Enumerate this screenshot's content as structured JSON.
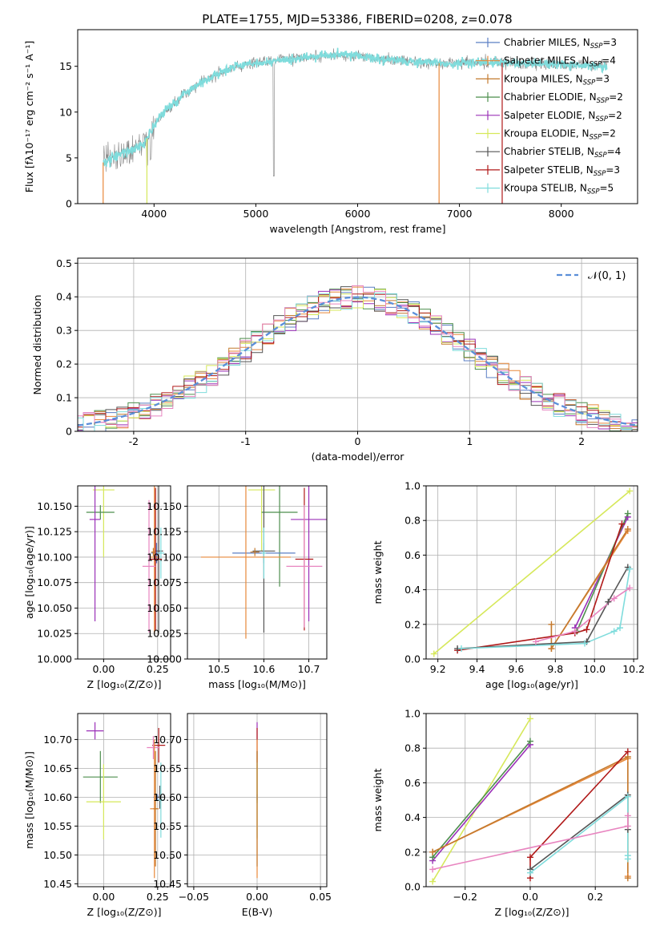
{
  "figure": {
    "title": "PLATE=1755, MJD=53386, FIBERID=0208, z=0.078"
  },
  "colors": {
    "Chabrier MILES": "#5b7fc4",
    "Salpeter MILES": "#e8883a",
    "Kroupa MILES": "#c47a2e",
    "Chabrier ELODIE": "#4e8f4e",
    "Salpeter ELODIE": "#9b30b8",
    "Kroupa ELODIE": "#d6e85a",
    "Chabrier STELIB": "#555555",
    "Salpeter STELIB": "#b01818",
    "Kroupa STELIB": "#7fdcdc",
    "pink": "#e885c0",
    "normal": "#5b8fd9",
    "spectrum": "#808080"
  },
  "legend_spectrum": [
    {
      "name": "Chabrier MILES",
      "label": "Chabrier MILES, N",
      "sub": "SSP",
      "tail": "=3"
    },
    {
      "name": "Salpeter MILES",
      "label": "Salpeter MILES, N",
      "sub": "SSP",
      "tail": "=4"
    },
    {
      "name": "Kroupa MILES",
      "label": "Kroupa MILES, N",
      "sub": "SSP",
      "tail": "=3"
    },
    {
      "name": "Chabrier ELODIE",
      "label": "Chabrier ELODIE, N",
      "sub": "SSP",
      "tail": "=2"
    },
    {
      "name": "Salpeter ELODIE",
      "label": "Salpeter ELODIE, N",
      "sub": "SSP",
      "tail": "=2"
    },
    {
      "name": "Kroupa ELODIE",
      "label": "Kroupa ELODIE, N",
      "sub": "SSP",
      "tail": "=2"
    },
    {
      "name": "Chabrier STELIB",
      "label": "Chabrier STELIB, N",
      "sub": "SSP",
      "tail": "=4"
    },
    {
      "name": "Salpeter STELIB",
      "label": "Salpeter STELIB, N",
      "sub": "SSP",
      "tail": "=3"
    },
    {
      "name": "Kroupa STELIB",
      "label": "Kroupa STELIB, N",
      "sub": "SSP",
      "tail": "=5"
    }
  ],
  "chart_data": [
    {
      "type": "line",
      "id": "spectrum",
      "xlabel": "wavelength [Angstrom, rest frame]",
      "ylabel": "Flux [fλ10⁻¹⁷ erg cm⁻² s⁻¹ A⁻¹]",
      "xlim": [
        3250,
        8750
      ],
      "ylim": [
        0,
        19
      ],
      "xticks": [
        4000,
        5000,
        6000,
        7000,
        8000
      ],
      "yticks": [
        0,
        5,
        10,
        15
      ],
      "grid": false,
      "legend": "right",
      "continuum": [
        [
          3500,
          4.5
        ],
        [
          3700,
          5.5
        ],
        [
          3900,
          6.5
        ],
        [
          4000,
          8.5
        ],
        [
          4100,
          10
        ],
        [
          4300,
          12
        ],
        [
          4500,
          13.5
        ],
        [
          4800,
          15
        ],
        [
          5100,
          15.5
        ],
        [
          5500,
          16
        ],
        [
          5800,
          16.3
        ],
        [
          6100,
          16
        ],
        [
          6500,
          15.5
        ],
        [
          6900,
          15.3
        ],
        [
          7200,
          15.5
        ],
        [
          7600,
          15.3
        ],
        [
          8000,
          15.2
        ],
        [
          8400,
          15
        ]
      ]
    },
    {
      "type": "line",
      "id": "residuals",
      "xlabel": "(data-model)/error",
      "ylabel": "Normed distribution",
      "xlim": [
        -2.5,
        2.5
      ],
      "ylim": [
        0,
        0.515
      ],
      "xticks": [
        -2,
        -1,
        0,
        1,
        2
      ],
      "yticks": [
        0.0,
        0.1,
        0.2,
        0.3,
        0.4,
        0.5
      ],
      "grid": true,
      "legend": "top-right",
      "legend_label": "𝒩(0, 1)"
    },
    {
      "type": "scatter",
      "id": "age_vs_Z",
      "xlabel": "Z [log₁₀(Z/Z⊙)]",
      "ylabel": "age  [log₁₀(age/yr)]",
      "xlim": [
        -0.12,
        0.31
      ],
      "ylim": [
        10.0,
        10.17
      ],
      "xticks": [
        0.0,
        0.25
      ],
      "xticklabels": [
        "0.00",
        "0.25"
      ],
      "yticks": [
        10.0,
        10.025,
        10.05,
        10.075,
        10.1,
        10.125,
        10.15
      ],
      "yticklabels": [
        "10.000",
        "10.025",
        "10.050",
        "10.075",
        "10.100",
        "10.125",
        "10.150"
      ],
      "grid": true,
      "points": [
        {
          "name": "Kroupa ELODIE",
          "x": 0.0,
          "y": 10.166,
          "xerr": 0.05,
          "yerr": 0.066
        },
        {
          "name": "Chabrier ELODIE",
          "x": -0.015,
          "y": 10.144,
          "xerr": 0.065,
          "yerr": 0.007
        },
        {
          "name": "Salpeter ELODIE",
          "x": -0.04,
          "y": 10.137,
          "xerr": 0.025,
          "yerr": 0.1
        },
        {
          "name": "Chabrier MILES",
          "x": 0.245,
          "y": 10.104,
          "xerr": 0.025,
          "yerr": 0.01
        },
        {
          "name": "Chabrier STELIB",
          "x": 0.255,
          "y": 10.106,
          "xerr": 0.02,
          "yerr": 0.08
        },
        {
          "name": "Kroupa STELIB",
          "x": 0.265,
          "y": 10.104,
          "xerr": 0.015,
          "yerr": 0.025
        },
        {
          "name": "Salpeter MILES",
          "x": 0.235,
          "y": 10.1,
          "xerr": 0.02,
          "yerr": 0.075
        },
        {
          "name": "Salpeter STELIB",
          "x": 0.24,
          "y": 10.098,
          "xerr": 0.03,
          "yerr": 0.07
        },
        {
          "name": "pink",
          "x": 0.21,
          "y": 10.091,
          "xerr": 0.03,
          "yerr": 0.065
        },
        {
          "name": "Kroupa MILES",
          "x": 0.23,
          "y": 10.105,
          "xerr": 0.01,
          "yerr": 0.004
        }
      ]
    },
    {
      "type": "scatter",
      "id": "age_vs_mass",
      "xlabel": "mass [log₁₀(M/M⊙)]",
      "xlim": [
        10.43,
        10.74
      ],
      "ylim": [
        10.0,
        10.17
      ],
      "xticks": [
        10.5,
        10.6,
        10.7
      ],
      "xticklabels": [
        "10.5",
        "10.6",
        "10.7"
      ],
      "yticks": [
        10.0,
        10.025,
        10.05,
        10.075,
        10.1,
        10.125,
        10.15
      ],
      "yticklabels": [
        "10.000",
        "10.025",
        "10.050",
        "10.075",
        "10.100",
        "10.125",
        "10.150"
      ],
      "grid": true,
      "points": [
        {
          "name": "Kroupa ELODIE",
          "x": 10.595,
          "y": 10.166,
          "xerr": 0.03,
          "yerr": 0.06
        },
        {
          "name": "Chabrier ELODIE",
          "x": 10.635,
          "y": 10.144,
          "xerr": 0.04,
          "yerr": 0.073
        },
        {
          "name": "Salpeter ELODIE",
          "x": 10.7,
          "y": 10.137,
          "xerr": 0.04,
          "yerr": 0.1
        },
        {
          "name": "Chabrier MILES",
          "x": 10.6,
          "y": 10.104,
          "xerr": 0.07,
          "yerr": 0.01
        },
        {
          "name": "Chabrier STELIB",
          "x": 10.6,
          "y": 10.106,
          "xerr": 0.025,
          "yerr": 0.08
        },
        {
          "name": "Kroupa STELIB",
          "x": 10.6,
          "y": 10.104,
          "xerr": 0.005,
          "yerr": 0.025
        },
        {
          "name": "Salpeter MILES",
          "x": 10.56,
          "y": 10.1,
          "xerr": 0.1,
          "yerr": 0.08
        },
        {
          "name": "Salpeter STELIB",
          "x": 10.69,
          "y": 10.098,
          "xerr": 0.02,
          "yerr": 0.07
        },
        {
          "name": "pink",
          "x": 10.69,
          "y": 10.091,
          "xerr": 0.04,
          "yerr": 0.06
        },
        {
          "name": "Kroupa MILES",
          "x": 10.58,
          "y": 10.105,
          "xerr": 0.01,
          "yerr": 0.004
        }
      ]
    },
    {
      "type": "line",
      "id": "massweight_vs_age",
      "xlabel": "age  [log₁₀(age/yr)]",
      "ylabel": "mass weight",
      "xlim": [
        9.14,
        10.22
      ],
      "ylim": [
        0,
        1.0
      ],
      "xticks": [
        9.2,
        9.4,
        9.6,
        9.8,
        10.0,
        10.2
      ],
      "xticklabels": [
        "9.2",
        "9.4",
        "9.6",
        "9.8",
        "10.0",
        "10.2"
      ],
      "yticks": [
        0,
        0.2,
        0.4,
        0.6,
        0.8,
        1.0
      ],
      "yticklabels": [
        "0.0",
        "0.2",
        "0.4",
        "0.6",
        "0.8",
        "1.0"
      ],
      "grid": true,
      "series": [
        {
          "name": "Kroupa ELODIE",
          "x": [
            9.18,
            10.18
          ],
          "y": [
            0.03,
            0.97
          ]
        },
        {
          "name": "Salpeter ELODIE",
          "x": [
            9.9,
            10.17
          ],
          "y": [
            0.18,
            0.82
          ]
        },
        {
          "name": "Chabrier ELODIE",
          "x": [
            9.91,
            10.17
          ],
          "y": [
            0.16,
            0.84
          ]
        },
        {
          "name": "Salpeter MILES",
          "x": [
            9.78,
            10.17
          ],
          "y": [
            0.06,
            0.74
          ]
        },
        {
          "name": "Kroupa MILES",
          "x": [
            9.78,
            9.78,
            10.17
          ],
          "y": [
            0.2,
            0.06,
            0.75
          ]
        },
        {
          "name": "Salpeter STELIB",
          "x": [
            9.3,
            9.9,
            9.96,
            10.14
          ],
          "y": [
            0.05,
            0.15,
            0.17,
            0.78
          ]
        },
        {
          "name": "Chabrier STELIB",
          "x": [
            9.3,
            9.96,
            10.07,
            10.17
          ],
          "y": [
            0.06,
            0.1,
            0.33,
            0.53
          ]
        },
        {
          "name": "Kroupa STELIB",
          "x": [
            9.32,
            9.95,
            10.1,
            10.13,
            10.18
          ],
          "y": [
            0.06,
            0.09,
            0.16,
            0.18,
            0.52
          ]
        },
        {
          "name": "pink",
          "x": [
            9.7,
            9.9,
            10.1,
            10.18
          ],
          "y": [
            0.1,
            0.16,
            0.35,
            0.41
          ]
        }
      ]
    },
    {
      "type": "scatter",
      "id": "mass_vs_Z",
      "xlabel": "Z [log₁₀(Z/Z⊙)]",
      "ylabel": "mass [log₁₀(M/M⊙)]",
      "xlim": [
        -0.12,
        0.31
      ],
      "ylim": [
        10.445,
        10.745
      ],
      "xticks": [
        0.0,
        0.25
      ],
      "xticklabels": [
        "0.00",
        "0.25"
      ],
      "yticks": [
        10.45,
        10.5,
        10.55,
        10.6,
        10.65,
        10.7
      ],
      "yticklabels": [
        "10.45",
        "10.50",
        "10.55",
        "10.60",
        "10.65",
        "10.70"
      ],
      "grid": true,
      "points": [
        {
          "name": "Salpeter ELODIE",
          "x": -0.04,
          "y": 10.715,
          "xerr": 0.04,
          "yerr": 0.015
        },
        {
          "name": "Chabrier ELODIE",
          "x": -0.015,
          "y": 10.635,
          "xerr": 0.08,
          "yerr": 0.045
        },
        {
          "name": "Kroupa ELODIE",
          "x": 0.0,
          "y": 10.592,
          "xerr": 0.08,
          "yerr": 0.065
        },
        {
          "name": "Salpeter STELIB",
          "x": 0.255,
          "y": 10.69,
          "xerr": 0.03,
          "yerr": 0.03
        },
        {
          "name": "pink",
          "x": 0.23,
          "y": 10.686,
          "xerr": 0.03,
          "yerr": 0.02
        },
        {
          "name": "Chabrier MILES",
          "x": 0.25,
          "y": 10.6,
          "xerr": 0.02,
          "yerr": 0.005
        },
        {
          "name": "Chabrier STELIB",
          "x": 0.26,
          "y": 10.6,
          "xerr": 0.02,
          "yerr": 0.02
        },
        {
          "name": "Kroupa STELIB",
          "x": 0.265,
          "y": 10.595,
          "xerr": 0.015,
          "yerr": 0.065
        },
        {
          "name": "Salpeter MILES",
          "x": 0.235,
          "y": 10.58,
          "xerr": 0.02,
          "yerr": 0.12
        },
        {
          "name": "Kroupa MILES",
          "x": 0.24,
          "y": 10.58,
          "xerr": 0.01,
          "yerr": 0.1
        }
      ]
    },
    {
      "type": "scatter",
      "id": "mass_vs_EBV",
      "xlabel": "E(B-V)",
      "xlim": [
        -0.055,
        0.055
      ],
      "ylim": [
        10.445,
        10.745
      ],
      "xticks": [
        -0.05,
        0.0,
        0.05
      ],
      "xticklabels": [
        "−0.05",
        "0.00",
        "0.05"
      ],
      "yticks": [
        10.45,
        10.5,
        10.55,
        10.6,
        10.65,
        10.7
      ],
      "yticklabels": [
        "10.45",
        "10.50",
        "10.55",
        "10.60",
        "10.65",
        "10.70"
      ],
      "grid": true,
      "points": [
        {
          "name": "Salpeter ELODIE",
          "x": 0.0,
          "y": 10.715,
          "xerr": 0.0,
          "yerr": 0.015
        },
        {
          "name": "Chabrier ELODIE",
          "x": 0.0,
          "y": 10.635,
          "xerr": 0.0,
          "yerr": 0.045
        },
        {
          "name": "Kroupa ELODIE",
          "x": 0.0,
          "y": 10.592,
          "xerr": 0.0,
          "yerr": 0.065
        },
        {
          "name": "Salpeter STELIB",
          "x": 0.0,
          "y": 10.69,
          "xerr": 0.0,
          "yerr": 0.03
        },
        {
          "name": "Chabrier MILES",
          "x": 0.0,
          "y": 10.6,
          "xerr": 0.0,
          "yerr": 0.005
        },
        {
          "name": "Kroupa STELIB",
          "x": 0.0,
          "y": 10.595,
          "xerr": 0.0,
          "yerr": 0.065
        },
        {
          "name": "Salpeter MILES",
          "x": 0.0,
          "y": 10.58,
          "xerr": 0.0,
          "yerr": 0.12
        },
        {
          "name": "Kroupa MILES",
          "x": 0.0,
          "y": 10.58,
          "xerr": 0.0,
          "yerr": 0.1
        }
      ]
    },
    {
      "type": "line",
      "id": "massweight_vs_Z",
      "xlabel": "Z [log₁₀(Z/Z⊙)]",
      "ylabel": "mass weight",
      "xlim": [
        -0.32,
        0.33
      ],
      "ylim": [
        0,
        1.0
      ],
      "xticks": [
        -0.2,
        0.0,
        0.2
      ],
      "xticklabels": [
        "−0.2",
        "0.0",
        "0.2"
      ],
      "yticks": [
        0,
        0.2,
        0.4,
        0.6,
        0.8,
        1.0
      ],
      "yticklabels": [
        "0.0",
        "0.2",
        "0.4",
        "0.6",
        "0.8",
        "1.0"
      ],
      "grid": true,
      "series": [
        {
          "name": "Kroupa ELODIE",
          "x": [
            -0.3,
            0.0
          ],
          "y": [
            0.03,
            0.97
          ]
        },
        {
          "name": "Salpeter ELODIE",
          "x": [
            -0.3,
            0.0
          ],
          "y": [
            0.15,
            0.82
          ]
        },
        {
          "name": "Chabrier ELODIE",
          "x": [
            -0.3,
            0.0
          ],
          "y": [
            0.17,
            0.84
          ]
        },
        {
          "name": "Salpeter MILES",
          "x": [
            -0.3,
            0.3,
            0.3
          ],
          "y": [
            0.2,
            0.74,
            0.06
          ]
        },
        {
          "name": "Kroupa MILES",
          "x": [
            -0.3,
            0.3,
            0.3
          ],
          "y": [
            0.2,
            0.75,
            0.05
          ]
        },
        {
          "name": "Salpeter STELIB",
          "x": [
            0.0,
            0.0,
            0.3
          ],
          "y": [
            0.05,
            0.17,
            0.78
          ]
        },
        {
          "name": "Chabrier STELIB",
          "x": [
            0.0,
            0.3,
            0.3
          ],
          "y": [
            0.1,
            0.53,
            0.33
          ]
        },
        {
          "name": "Kroupa STELIB",
          "x": [
            0.0,
            0.3,
            0.3,
            0.3
          ],
          "y": [
            0.08,
            0.52,
            0.16,
            0.18
          ]
        },
        {
          "name": "pink",
          "x": [
            -0.3,
            0.3,
            0.3
          ],
          "y": [
            0.1,
            0.35,
            0.41
          ]
        }
      ]
    }
  ]
}
